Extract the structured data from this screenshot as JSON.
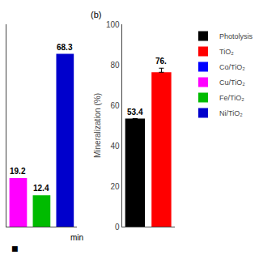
{
  "chart_data": [
    {
      "type": "bar",
      "categories": [
        null,
        null,
        null
      ],
      "values": [
        19.2,
        12.4,
        68.3
      ],
      "colors": [
        "#FF00FF",
        "#00BB00",
        "#0000CC"
      ],
      "ylim": [
        0,
        80
      ],
      "data_labels": true,
      "tick_labels": false,
      "grid": false,
      "annotations": [
        "min",
        "■"
      ]
    },
    {
      "type": "bar",
      "title": "(b)",
      "categories": [
        null,
        null
      ],
      "values": [
        53.4,
        76.3
      ],
      "value_labels": [
        "53.4",
        "76."
      ],
      "colors": [
        "#000000",
        "#FF0000"
      ],
      "error_plus": [
        0,
        2.0
      ],
      "ylim": [
        0,
        100
      ],
      "yticks": [
        0,
        20,
        40,
        60,
        80,
        100
      ],
      "ylabel": "Mineralization (%)",
      "data_labels": true,
      "tick_labels": "y",
      "grid": false,
      "legend": "upper right",
      "legend_entries": [
        {
          "name": "Photolysis",
          "color": "#000000"
        },
        {
          "name": "TiO₂",
          "color": "#FF0000"
        },
        {
          "name": "Co/TiO₂",
          "color": "#0000FF"
        },
        {
          "name": "Cu/TiO₂",
          "color": "#FF00FF"
        },
        {
          "name": "Fe/TiO₂",
          "color": "#00BB00"
        },
        {
          "name": "Ni/TiO₂",
          "color": "#0000CC"
        }
      ]
    }
  ]
}
